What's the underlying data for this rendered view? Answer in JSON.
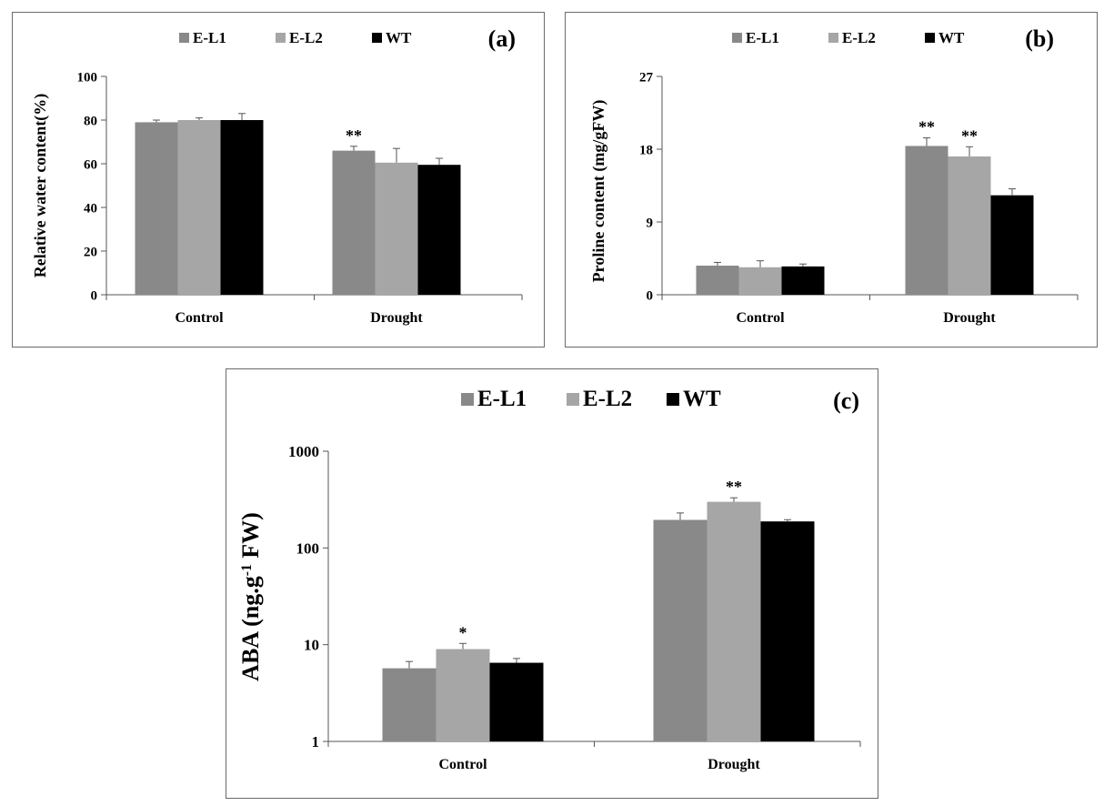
{
  "colors": {
    "E-L1": "#898989",
    "E-L2": "#a6a6a6",
    "WT": "#000000"
  },
  "chart_data": [
    {
      "id": "a",
      "type": "bar",
      "panel_label": "(a)",
      "categories": [
        "Control",
        "Drought"
      ],
      "series": [
        {
          "name": "E-L1",
          "values": [
            79,
            66
          ],
          "errors": [
            1.0,
            2.0
          ]
        },
        {
          "name": "E-L2",
          "values": [
            80,
            60.5
          ],
          "errors": [
            1.0,
            6.5
          ]
        },
        {
          "name": "WT",
          "values": [
            80,
            59.5
          ],
          "errors": [
            3.0,
            3.0
          ]
        }
      ],
      "annotations": [
        {
          "category": 1,
          "series": 0,
          "text": "**"
        }
      ],
      "ylabel": "Relative water content(%)",
      "xlabel": "",
      "ylim": [
        0,
        100
      ],
      "yticks": [
        0,
        20,
        40,
        60,
        80,
        100
      ],
      "ytick_labels": [
        "0",
        "20",
        "40",
        "60",
        "80",
        "100"
      ],
      "scale": "linear",
      "legend": "top"
    },
    {
      "id": "b",
      "type": "bar",
      "panel_label": "(b)",
      "categories": [
        "Control",
        "Drought"
      ],
      "series": [
        {
          "name": "E-L1",
          "values": [
            3.6,
            18.4
          ],
          "errors": [
            0.4,
            1.0
          ]
        },
        {
          "name": "E-L2",
          "values": [
            3.4,
            17.1
          ],
          "errors": [
            0.8,
            1.2
          ]
        },
        {
          "name": "WT",
          "values": [
            3.5,
            12.3
          ],
          "errors": [
            0.3,
            0.8
          ]
        }
      ],
      "annotations": [
        {
          "category": 1,
          "series": 0,
          "text": "**"
        },
        {
          "category": 1,
          "series": 1,
          "text": "**"
        }
      ],
      "ylabel": "Proline content (mg/gFW)",
      "xlabel": "",
      "ylim": [
        0,
        27
      ],
      "yticks": [
        0,
        9,
        18,
        27
      ],
      "ytick_labels": [
        "0",
        "9",
        "18",
        "27"
      ],
      "scale": "linear",
      "legend": "top"
    },
    {
      "id": "c",
      "type": "bar",
      "panel_label": "(c)",
      "categories": [
        "Control",
        "Drought"
      ],
      "series": [
        {
          "name": "E-L1",
          "values": [
            5.7,
            195
          ],
          "errors": [
            1.0,
            35
          ]
        },
        {
          "name": "E-L2",
          "values": [
            9.0,
            300
          ],
          "errors": [
            1.3,
            30
          ]
        },
        {
          "name": "WT",
          "values": [
            6.5,
            188
          ],
          "errors": [
            0.7,
            8
          ]
        }
      ],
      "annotations": [
        {
          "category": 0,
          "series": 1,
          "text": "*"
        },
        {
          "category": 1,
          "series": 1,
          "text": "**"
        }
      ],
      "ylabel_main": "ABA (ng.g",
      "ylabel_sup": "-1",
      "ylabel_tail": " FW)",
      "xlabel": "",
      "ylim": [
        1,
        1000
      ],
      "yticks": [
        1,
        10,
        100,
        1000
      ],
      "ytick_labels": [
        "1",
        "10",
        "100",
        "1000"
      ],
      "scale": "log",
      "legend": "top"
    }
  ]
}
